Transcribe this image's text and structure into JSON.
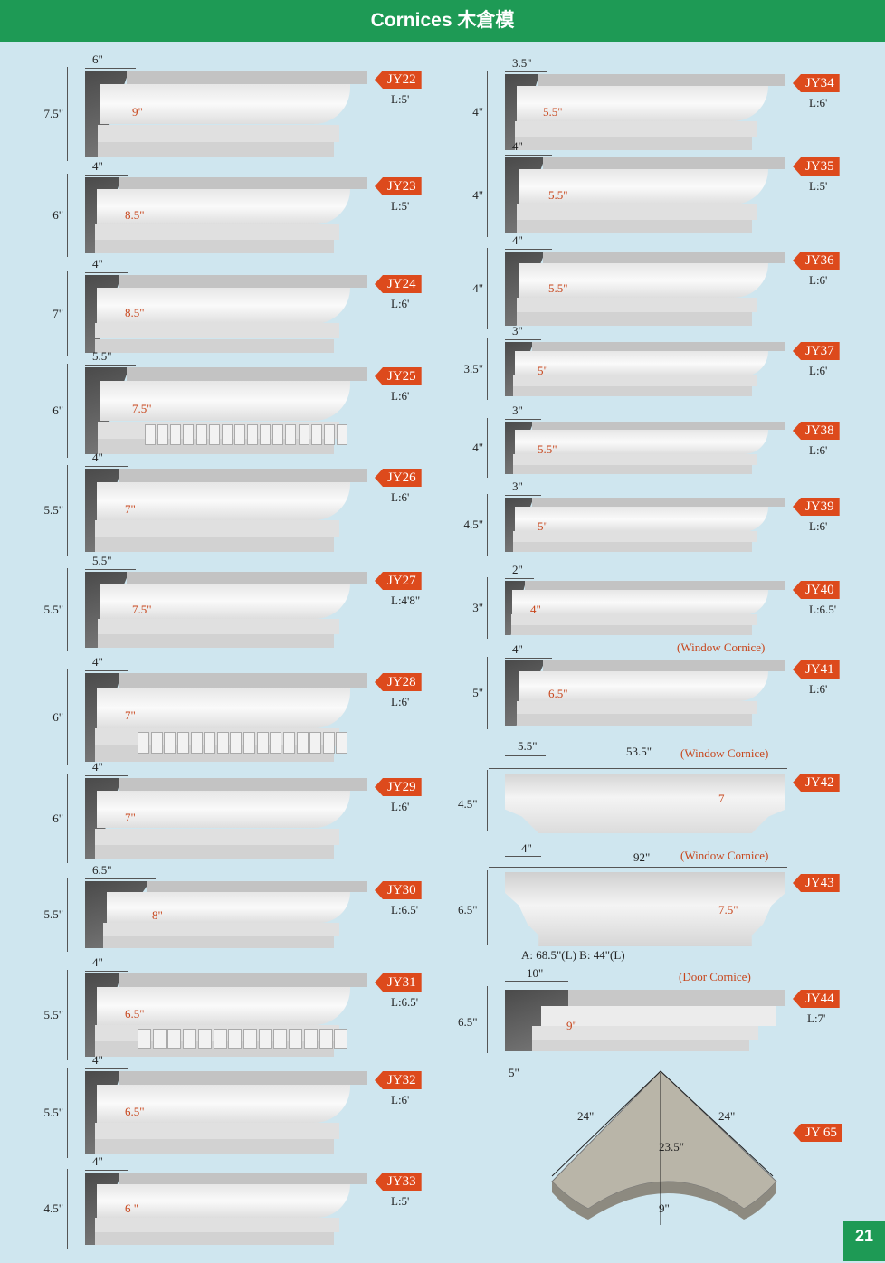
{
  "header": {
    "title": "Cornices 木倉模"
  },
  "page_number": "21",
  "left_items": [
    {
      "code": "JY22",
      "length": "L:5'",
      "width": "6\"",
      "height": "7.5\"",
      "depth": "9\""
    },
    {
      "code": "JY23",
      "length": "L:5'",
      "width": "4\"",
      "height": "6\"",
      "depth": "8.5\""
    },
    {
      "code": "JY24",
      "length": "L:6'",
      "width": "4\"",
      "height": "7\"",
      "depth": "8.5\""
    },
    {
      "code": "JY25",
      "length": "L:6'",
      "width": "5.5\"",
      "height": "6\"",
      "depth": "7.5\""
    },
    {
      "code": "JY26",
      "length": "L:6'",
      "width": "4\"",
      "height": "5.5\"",
      "depth": "7\""
    },
    {
      "code": "JY27",
      "length": "L:4'8\"",
      "width": "5.5\"",
      "height": "5.5\"",
      "depth": "7.5\""
    },
    {
      "code": "JY28",
      "length": "L:6'",
      "width": "4\"",
      "height": "6\"",
      "depth": "7\""
    },
    {
      "code": "JY29",
      "length": "L:6'",
      "width": "4\"",
      "height": "6\"",
      "depth": "7\""
    },
    {
      "code": "JY30",
      "length": "L:6.5'",
      "width": "6.5\"",
      "height": "5.5\"",
      "depth": "8\""
    },
    {
      "code": "JY31",
      "length": "L:6.5'",
      "width": "4\"",
      "height": "5.5\"",
      "depth": "6.5\""
    },
    {
      "code": "JY32",
      "length": "L:6'",
      "width": "4\"",
      "height": "5.5\"",
      "depth": "6.5\""
    },
    {
      "code": "JY33",
      "length": "L:5'",
      "width": "4\"",
      "height": "4.5\"",
      "depth": "6 \""
    }
  ],
  "right_items": [
    {
      "code": "JY34",
      "length": "L:6'",
      "width": "3.5\"",
      "height": "4\"",
      "depth": "5.5\""
    },
    {
      "code": "JY35",
      "length": "L:5'",
      "width": "4\"",
      "height": "4\"",
      "depth": "5.5\""
    },
    {
      "code": "JY36",
      "length": "L:6'",
      "width": "4\"",
      "height": "4\"",
      "depth": "5.5\""
    },
    {
      "code": "JY37",
      "length": "L:6'",
      "width": "3\"",
      "height": "3.5\"",
      "depth": "5\""
    },
    {
      "code": "JY38",
      "length": "L:6'",
      "width": "3\"",
      "height": "4\"",
      "depth": "5.5\""
    },
    {
      "code": "JY39",
      "length": "L:6'",
      "width": "3\"",
      "height": "4.5\"",
      "depth": "5\""
    },
    {
      "code": "JY40",
      "length": "L:6.5'",
      "width": "2\"",
      "height": "3\"",
      "depth": "4\""
    },
    {
      "code": "JY41",
      "length": "L:6'",
      "width": "4\"",
      "height": "5\"",
      "depth": "6.5\"",
      "note": "(Window Cornice)"
    }
  ],
  "jy42": {
    "code": "JY42",
    "note": "(Window Cornice)",
    "width": "5.5\"",
    "span": "53.5\"",
    "height": "4.5\"",
    "depth": "7"
  },
  "jy43": {
    "code": "JY43",
    "note": "(Window Cornice)",
    "width": "4\"",
    "span": "92\"",
    "height": "6.5\"",
    "depth": "7.5\"",
    "sizes": "A: 68.5\"(L)  B: 44\"(L)"
  },
  "jy44": {
    "code": "JY44",
    "note": "(Door Cornice)",
    "width": "10\"",
    "height": "6.5\"",
    "depth": "9\"",
    "length": "L:7'",
    "bottom": "5\""
  },
  "jy65": {
    "code": "JY 65",
    "side_a": "24\"",
    "side_b": "24\"",
    "center": "23.5\"",
    "rise": "9\""
  },
  "colors": {
    "header_green": "#1e9a55",
    "tag_orange": "#dd4a1c",
    "background": "#cfe6ef"
  }
}
